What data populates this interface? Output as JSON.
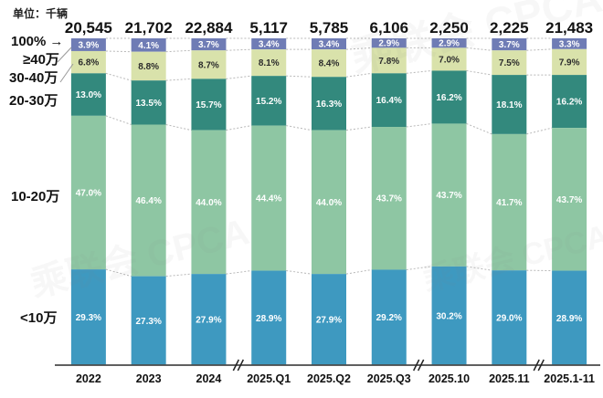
{
  "unit_label": "单位：千辆",
  "y_axis": {
    "top_label": "100%",
    "arrow_icon": "→",
    "labels": [
      "≥40万",
      "30-40万",
      "20-30万",
      "10-20万",
      "<10万"
    ]
  },
  "watermark": {
    "text": "乘联会 CPCA"
  },
  "chart_data": {
    "type": "bar",
    "subtype": "100%-stacked-column",
    "title": "",
    "unit": "千辆",
    "categories": [
      "2022",
      "2023",
      "2024",
      "2025.Q1",
      "2025.Q2",
      "2025.Q3",
      "2025.10",
      "2025.11",
      "2025.1-11"
    ],
    "totals": [
      20545,
      21702,
      22884,
      5117,
      5785,
      6106,
      2250,
      2225,
      21483
    ],
    "series_order": "top-to-bottom",
    "series": [
      {
        "name": "≥40万",
        "color": "#6f7cb5",
        "label_color": "#ffffff",
        "values": [
          3.9,
          4.1,
          3.7,
          3.4,
          3.4,
          2.9,
          2.9,
          3.7,
          3.3
        ]
      },
      {
        "name": "30-40万",
        "color": "#d9e2ab",
        "label_color": "#2b2b2b",
        "values": [
          6.8,
          8.8,
          8.7,
          8.1,
          8.4,
          7.8,
          7.0,
          7.5,
          7.9
        ]
      },
      {
        "name": "20-30万",
        "color": "#33897d",
        "label_color": "#ffffff",
        "values": [
          13.0,
          13.5,
          15.7,
          15.2,
          16.3,
          16.4,
          16.2,
          18.1,
          16.2
        ]
      },
      {
        "name": "10-20万",
        "color": "#8ec6a3",
        "label_color": "#ffffff",
        "values": [
          47.0,
          46.4,
          44.0,
          44.4,
          44.0,
          43.7,
          43.7,
          41.7,
          43.7
        ]
      },
      {
        "name": "<10万",
        "color": "#3e99c0",
        "label_color": "#ffffff",
        "values": [
          29.3,
          27.3,
          27.9,
          28.9,
          27.9,
          29.2,
          30.2,
          29.0,
          28.9
        ]
      }
    ],
    "axis_breaks_after_category_index": [
      2,
      5,
      7
    ],
    "ylim": [
      0,
      100
    ],
    "grid": false,
    "legend": "none",
    "connector_color": "#b8b8b8",
    "axis_color": "#4a4a4a"
  }
}
